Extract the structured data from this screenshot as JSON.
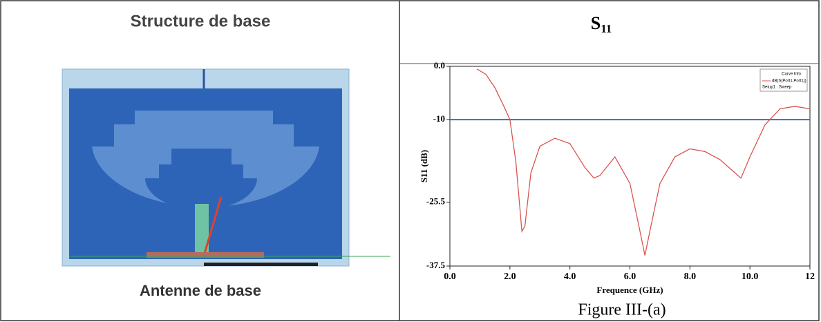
{
  "header": {
    "left": "Structure de base",
    "right": {
      "main": "S",
      "sub": "11"
    }
  },
  "left_caption": "Antenne de base",
  "figure_caption": "Figure III-(a)",
  "chart_data": {
    "type": "line",
    "x_label": "Frequence (GHz)",
    "y_label": "S11 (dB)",
    "legend_title": "Curve Info",
    "legend_note": "Setup1 : Sweep",
    "x": [
      0.9,
      1.2,
      1.5,
      1.8,
      2.0,
      2.2,
      2.4,
      2.5,
      2.7,
      3.0,
      3.5,
      4.0,
      4.5,
      4.8,
      5.0,
      5.5,
      6.0,
      6.3,
      6.5,
      6.7,
      7.0,
      7.5,
      8.0,
      8.5,
      9.0,
      9.5,
      9.7,
      10.0,
      10.5,
      11.0,
      11.5,
      12.0
    ],
    "series": [
      {
        "name": "dB(S(Port1,Port1))",
        "color": "#d9534f",
        "values": [
          -0.5,
          -1.5,
          -4,
          -7.5,
          -10,
          -18,
          -31,
          -30,
          -20,
          -15,
          -13.5,
          -14.5,
          -19,
          -21,
          -20.5,
          -17,
          -22,
          -30,
          -35.5,
          -30,
          -22,
          -17,
          -15.5,
          -16,
          -17.5,
          -20,
          -21,
          -17,
          -11,
          -8,
          -7.5,
          -8
        ]
      }
    ],
    "reference_line": {
      "value": -10,
      "color": "#3a6fb5"
    },
    "xlim": [
      0,
      12
    ],
    "ylim": [
      -37.5,
      0
    ],
    "xticks": [
      {
        "value": 0,
        "label": "0.0"
      },
      {
        "value": 2,
        "label": "2.0"
      },
      {
        "value": 4,
        "label": "4.0"
      },
      {
        "value": 6,
        "label": "6.0"
      },
      {
        "value": 8,
        "label": "8.0"
      },
      {
        "value": 10,
        "label": "10.0"
      },
      12
    ],
    "yticks": [
      {
        "value": 0,
        "label": "0.0"
      },
      -10,
      -25.5,
      -37.5
    ]
  }
}
